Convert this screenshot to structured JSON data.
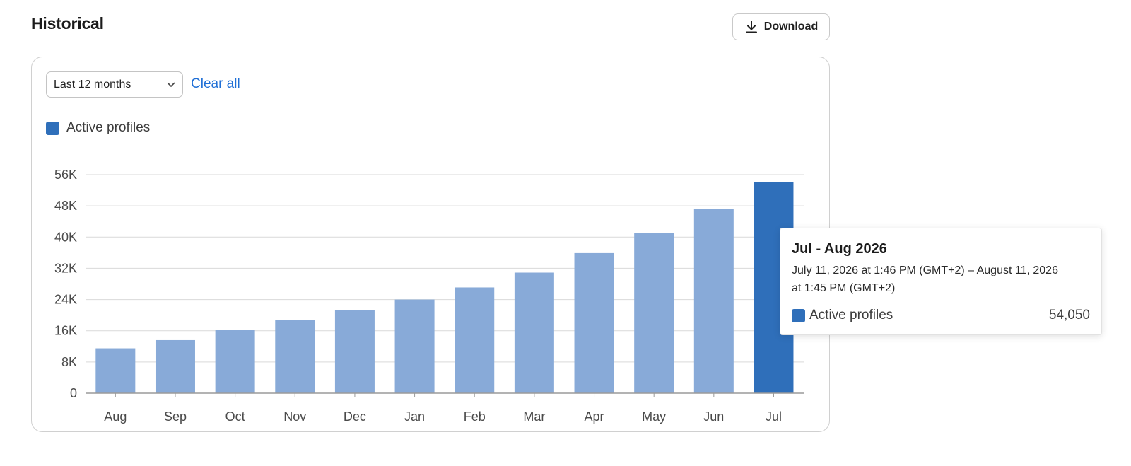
{
  "header": {
    "title": "Historical",
    "download_label": "Download"
  },
  "filters": {
    "range_label": "Last 12 months",
    "clear_label": "Clear all"
  },
  "legend": {
    "series_name": "Active profiles"
  },
  "colors": {
    "primary": "#2f6fba",
    "muted": "#88aad8",
    "link": "#1f6fd6"
  },
  "chart_data": {
    "type": "bar",
    "categories": [
      "Aug",
      "Sep",
      "Oct",
      "Nov",
      "Dec",
      "Jan",
      "Feb",
      "Mar",
      "Apr",
      "May",
      "Jun",
      "Jul"
    ],
    "series": [
      {
        "name": "Active profiles",
        "values": [
          11500,
          13600,
          16300,
          18800,
          21300,
          24000,
          27100,
          30900,
          35900,
          41000,
          47200,
          54050
        ]
      }
    ],
    "ylim": [
      0,
      56000
    ],
    "yticks": [
      "0",
      "8K",
      "16K",
      "24K",
      "32K",
      "40K",
      "48K",
      "56K"
    ],
    "ytick_values": [
      0,
      8000,
      16000,
      24000,
      32000,
      40000,
      48000,
      56000
    ],
    "highlighted": "Jul",
    "grid": true,
    "legend_position": "top-left"
  },
  "tooltip": {
    "title": "Jul - Aug 2026",
    "range_line1": "July 11, 2026 at 1:46 PM (GMT+2) – August 11, 2026",
    "range_line2": "at 1:45 PM (GMT+2)",
    "series_name": "Active profiles",
    "value": "54,050"
  }
}
